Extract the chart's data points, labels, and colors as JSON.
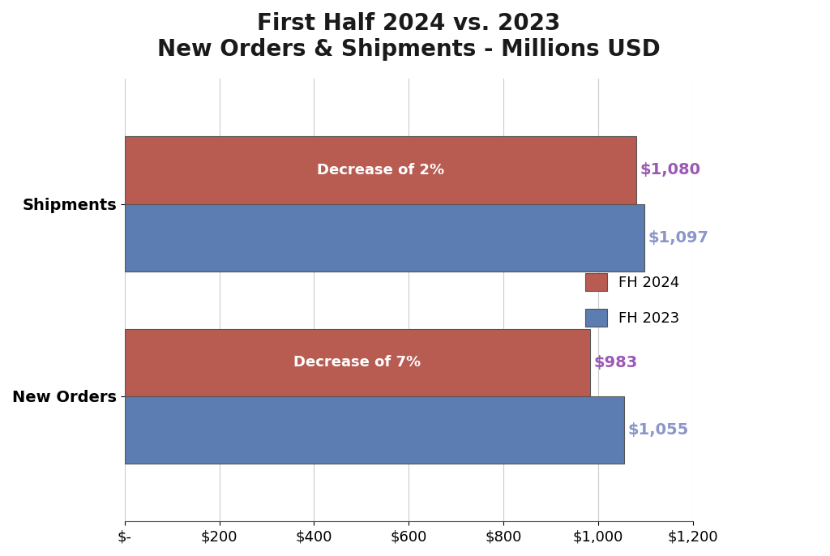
{
  "title_line1": "First Half 2024 vs. 2023",
  "title_line2": "New Orders & Shipments - Millions USD",
  "categories": [
    "New Orders",
    "Shipments"
  ],
  "fh2024_values": [
    983,
    1080
  ],
  "fh2023_values": [
    1055,
    1097
  ],
  "color_2024": "#B85C52",
  "color_2023": "#5B7DB1",
  "label_color_2024": "#9B59B6",
  "label_color_2023": "#8B96C8",
  "annotation_color": "#FFFFFF",
  "bar_annotations": [
    "Decrease of 7%",
    "Decrease of 2%"
  ],
  "value_labels_2024": [
    "$983",
    "$1,080"
  ],
  "value_labels_2023": [
    "$1,055",
    "$1,097"
  ],
  "xlim": [
    0,
    1200
  ],
  "xtick_values": [
    0,
    200,
    400,
    600,
    800,
    1000,
    1200
  ],
  "xtick_labels": [
    "$-",
    "$200",
    "$400",
    "$600",
    "$800",
    "$1,000",
    "$1,200"
  ],
  "legend_labels": [
    "FH 2024",
    "FH 2023"
  ],
  "background_color": "#FFFFFF",
  "bar_height": 0.35,
  "grid_color": "#CCCCCC",
  "title_fontsize": 20,
  "axis_label_fontsize": 13,
  "bar_label_fontsize": 13,
  "value_label_fontsize": 14,
  "ytick_fontsize": 14,
  "legend_fontsize": 13
}
